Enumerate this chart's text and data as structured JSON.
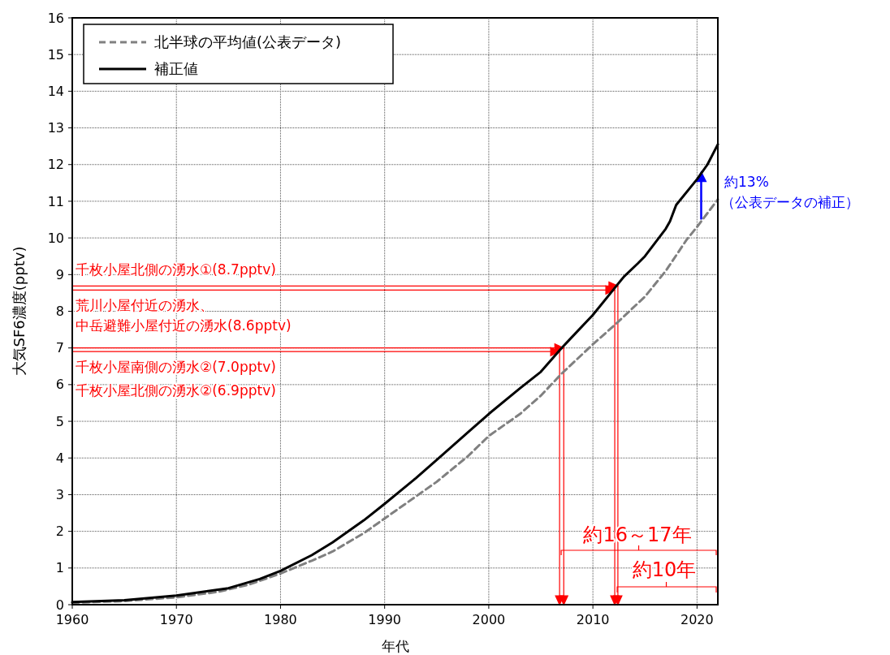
{
  "chart_data": {
    "type": "line",
    "xlabel": "年代",
    "ylabel": "大気SF6濃度(pptv)",
    "x": [
      1960,
      1965,
      1970,
      1975,
      1978,
      1980,
      1983,
      1985,
      1988,
      1990,
      1993,
      1995,
      1998,
      2000,
      2003,
      2005,
      2007,
      2008,
      2010,
      2012,
      2013,
      2014.3,
      2015,
      2017,
      2017.4,
      2018,
      2020,
      2021,
      2022
    ],
    "series": [
      {
        "name": "北半球の平均値(公表データ)",
        "color": "#808080",
        "line_style": "dashed",
        "x": [
          1960,
          1965,
          1970,
          1974,
          1977,
          1980,
          1983,
          1985,
          1988,
          1990,
          1993,
          1995,
          1998,
          2000,
          2003,
          2005,
          2007,
          2010,
          2012,
          2015,
          2017,
          2019,
          2020,
          2022
        ],
        "values": [
          0.05,
          0.1,
          0.2,
          0.35,
          0.55,
          0.85,
          1.2,
          1.45,
          1.95,
          2.35,
          2.95,
          3.35,
          4.05,
          4.6,
          5.2,
          5.7,
          6.3,
          7.1,
          7.6,
          8.4,
          9.1,
          9.95,
          10.3,
          11.05
        ]
      },
      {
        "name": "補正値",
        "color": "#000000",
        "line_style": "solid",
        "values": [
          0.07,
          0.12,
          0.25,
          0.45,
          0.7,
          0.92,
          1.35,
          1.7,
          2.3,
          2.75,
          3.45,
          3.95,
          4.7,
          5.2,
          5.9,
          6.35,
          7.0,
          7.3,
          7.9,
          8.6,
          8.95,
          9.3,
          9.5,
          10.25,
          10.45,
          10.9,
          11.6,
          12.0,
          12.55
        ]
      }
    ],
    "xlim": [
      1960,
      2022
    ],
    "xticks": [
      1960,
      1970,
      1980,
      1990,
      2000,
      2010,
      2020
    ],
    "ylim": [
      0,
      16
    ],
    "yticks": [
      0,
      1,
      2,
      3,
      4,
      5,
      6,
      7,
      8,
      9,
      10,
      11,
      12,
      13,
      14,
      15,
      16
    ],
    "grid": true,
    "legend": "top left",
    "annotations": [
      "千枚小屋北側の湧水①(8.7pptv)",
      "荒川小屋付近の湧水、",
      "中岳避難小屋付近の湧水(8.6pptv)",
      "千枚小屋南側の湧水②(7.0pptv)",
      "千枚小屋北側の湧水②(6.9pptv)",
      "約16～17年",
      "約10年",
      "約13%",
      "（公表データの補正）"
    ]
  }
}
